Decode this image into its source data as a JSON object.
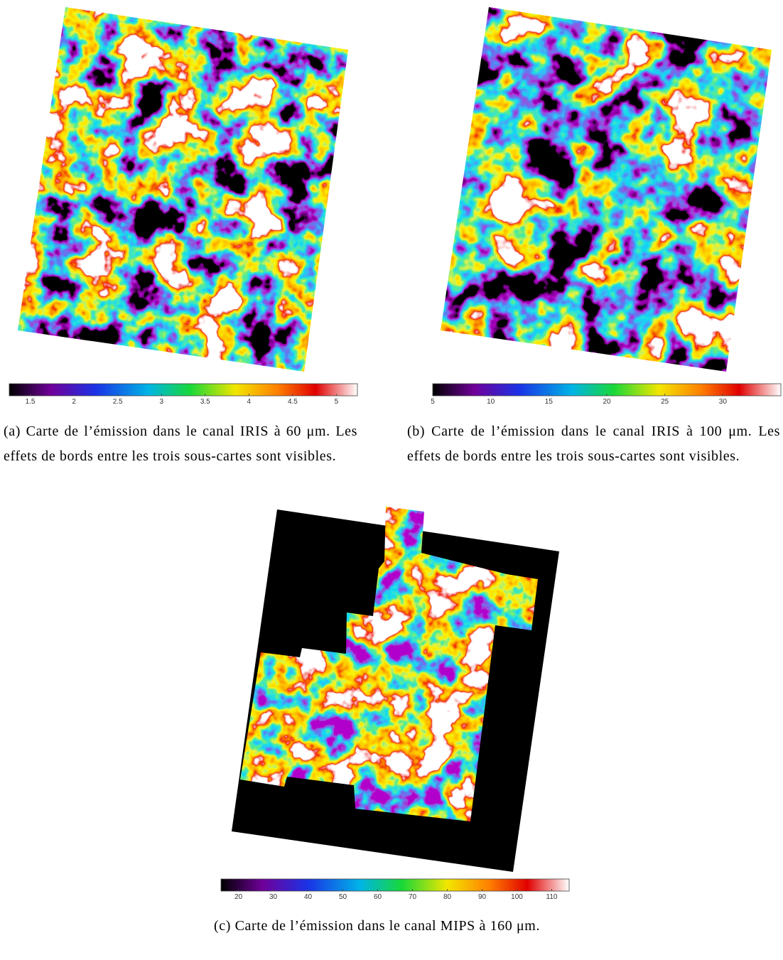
{
  "figures": [
    {
      "label": "(a)",
      "caption": "Carte de l’émission dans le canal IRIS à 60 μm. Les effets de bords entre les trois sous-cartes sont visibles.",
      "colorbar": {
        "lim": [
          1.26,
          5.24
        ],
        "ticks": [
          1.5,
          2,
          2.5,
          3,
          3.5,
          4,
          4.5,
          5
        ]
      }
    },
    {
      "label": "(b)",
      "caption": "Carte de l’émission dans le canal IRIS à 100 μm. Les effets de bords entre les trois sous-cartes sont visibles.",
      "colorbar": {
        "lim": [
          5,
          35
        ],
        "ticks": [
          5,
          10,
          15,
          20,
          25,
          30
        ]
      }
    },
    {
      "label": "(c)",
      "caption": "Carte de l’émission dans le canal MIPS à 160 μm.",
      "colorbar": {
        "lim": [
          15,
          115
        ],
        "ticks": [
          20,
          30,
          40,
          50,
          60,
          70,
          80,
          90,
          100,
          110
        ]
      }
    }
  ]
}
